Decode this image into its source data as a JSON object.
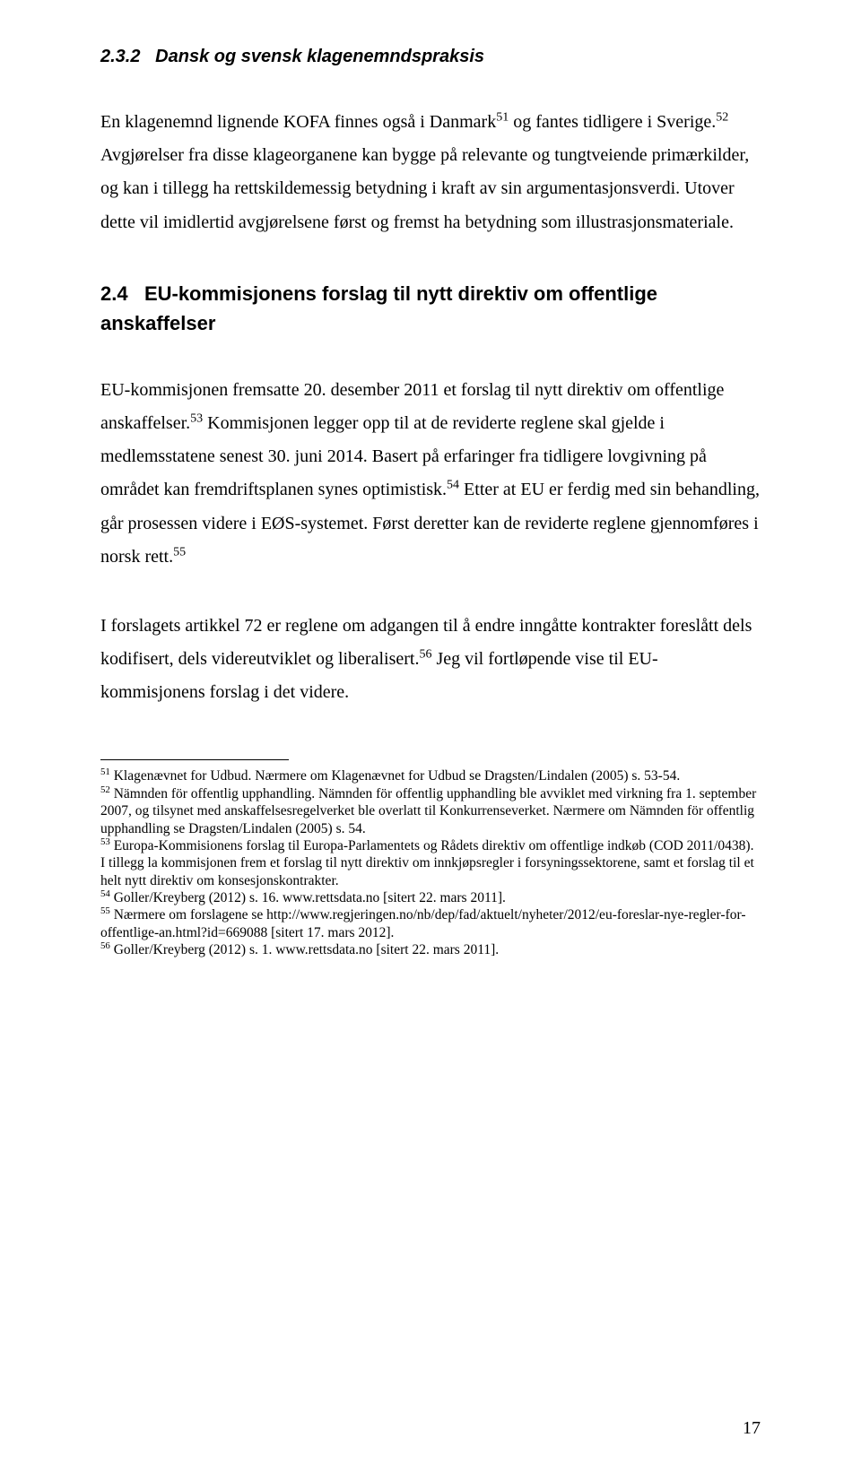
{
  "section_232": {
    "number": "2.3.2",
    "title": "Dansk og svensk klagenemndspraksis"
  },
  "p1": "En klagenemnd lignende KOFA finnes også i Danmark",
  "p1_fn51": "51",
  "p1_cont": " og fantes tidligere i Sverige.",
  "p1_fn52": "52",
  "p1_tail": " Avgjørelser fra disse klageorganene kan bygge på relevante og tungtveiende primærkilder, og kan i tillegg ha rettskildemessig betydning i kraft av sin argumentasjonsverdi. Utover dette vil imidlertid avgjørelsene først og fremst ha betydning som illustrasjonsmateriale.",
  "section_24": {
    "number": "2.4",
    "title": "EU-kommisjonens forslag til nytt direktiv om offentlige anskaffelser"
  },
  "p2a": "EU-kommisjonen fremsatte 20. desember 2011 et forslag til nytt direktiv om offentlige anskaffelser.",
  "p2_fn53": "53",
  "p2b": " Kommisjonen legger opp til at de reviderte reglene skal gjelde i medlemsstatene senest 30. juni 2014. Basert på erfaringer fra tidligere lovgivning på området kan fremdriftsplanen synes optimistisk.",
  "p2_fn54": "54",
  "p2c": " Etter at EU er ferdig med sin behandling, går prosessen videre i EØS-systemet. Først deretter kan de reviderte reglene gjennomføres i norsk rett.",
  "p2_fn55": "55",
  "p3a": "I forslagets artikkel 72 er reglene om adgangen til å endre inngåtte kontrakter foreslått dels kodifisert, dels videreutviklet og liberalisert.",
  "p3_fn56": "56",
  "p3b": " Jeg vil fortløpende vise til EU-kommisjonens forslag i det videre.",
  "footnotes": {
    "fn51_marker": "51",
    "fn51": " Klagenævnet for Udbud. Nærmere om Klagenævnet for Udbud se Dragsten/Lindalen (2005) s. 53-54.",
    "fn52_marker": "52",
    "fn52": " Nämnden för offentlig upphandling. Nämnden för offentlig upphandling ble avviklet med virkning fra 1. september 2007, og tilsynet med anskaffelsesregelverket ble overlatt til Konkurrenseverket. Nærmere om Nämnden för offentlig upphandling se Dragsten/Lindalen (2005) s. 54.",
    "fn53_marker": "53",
    "fn53": " Europa-Kommisionens forslag til Europa-Parlamentets og Rådets direktiv om offentlige indkøb (COD 2011/0438). I tillegg la kommisjonen frem et forslag til nytt direktiv om innkjøpsregler i forsyningssektorene, samt et forslag til et helt nytt direktiv om konsesjonskontrakter.",
    "fn54_marker": "54",
    "fn54": " Goller/Kreyberg (2012) s. 16. www.rettsdata.no [sitert 22. mars 2011].",
    "fn55_marker": "55",
    "fn55": " Nærmere om forslagene se http://www.regjeringen.no/nb/dep/fad/aktuelt/nyheter/2012/eu-foreslar-nye-regler-for-offentlige-an.html?id=669088 [sitert 17. mars 2012].",
    "fn56_marker": "56",
    "fn56": " Goller/Kreyberg (2012) s. 1. www.rettsdata.no [sitert 22. mars 2011]."
  },
  "page_number": "17"
}
